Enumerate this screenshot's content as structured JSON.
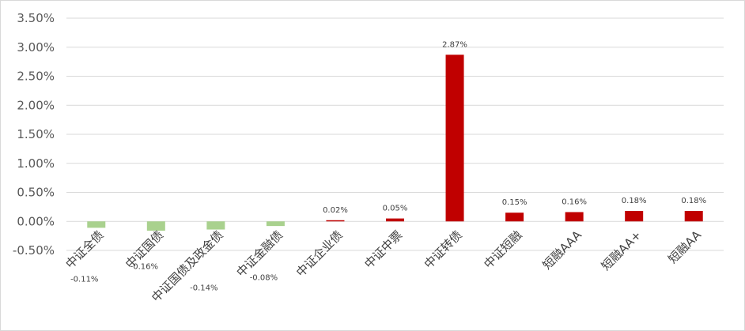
{
  "chart_data": {
    "type": "bar",
    "categories": [
      "中证全债",
      "中证国债",
      "中证国债及政金债",
      "中证金融债",
      "中证企业债",
      "中证中票",
      "中证转债",
      "中证短融",
      "短融AAA",
      "短融AA+",
      "短融AA"
    ],
    "values": [
      -0.11,
      -0.16,
      -0.14,
      -0.08,
      0.02,
      0.05,
      2.87,
      0.15,
      0.16,
      0.18,
      0.18
    ],
    "data_labels": [
      "-0.11%",
      "-0.16%",
      "-0.14%",
      "-0.08%",
      "0.02%",
      "0.05%",
      "2.87%",
      "0.15%",
      "0.16%",
      "0.18%",
      "0.18%"
    ],
    "y_ticks": [
      -0.5,
      0,
      0.5,
      1.0,
      1.5,
      2.0,
      2.5,
      3.0,
      3.5
    ],
    "y_tick_labels": [
      "-0.50%",
      "0.00%",
      "0.50%",
      "1.00%",
      "1.50%",
      "2.00%",
      "2.50%",
      "3.00%",
      "3.50%"
    ],
    "ylim": [
      -0.5,
      3.5
    ],
    "grid": true,
    "colors": {
      "positive": "#c00000",
      "negative": "#a9d18e"
    },
    "title": "",
    "xlabel": "",
    "ylabel": ""
  }
}
